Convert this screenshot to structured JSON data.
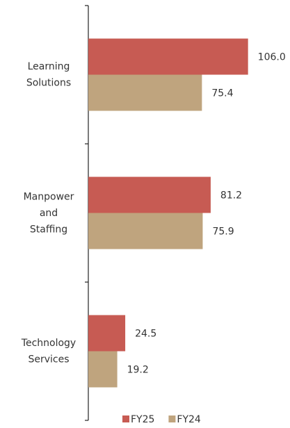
{
  "chart_data": {
    "type": "hbar",
    "categories": [
      "Learning\nSolutions",
      "Manpower\nand\nStaffing",
      "Technology\nServices"
    ],
    "series": [
      {
        "name": "FY25",
        "color": "#c75b53",
        "values": [
          106.0,
          81.2,
          24.5
        ],
        "value_labels": [
          "106.0",
          "81.2",
          "24.5"
        ]
      },
      {
        "name": "FY24",
        "color": "#bfa47e",
        "values": [
          75.4,
          75.9,
          19.2
        ],
        "value_labels": [
          "75.4",
          "75.9",
          "19.2"
        ]
      }
    ],
    "xlim": [
      0,
      120
    ]
  }
}
